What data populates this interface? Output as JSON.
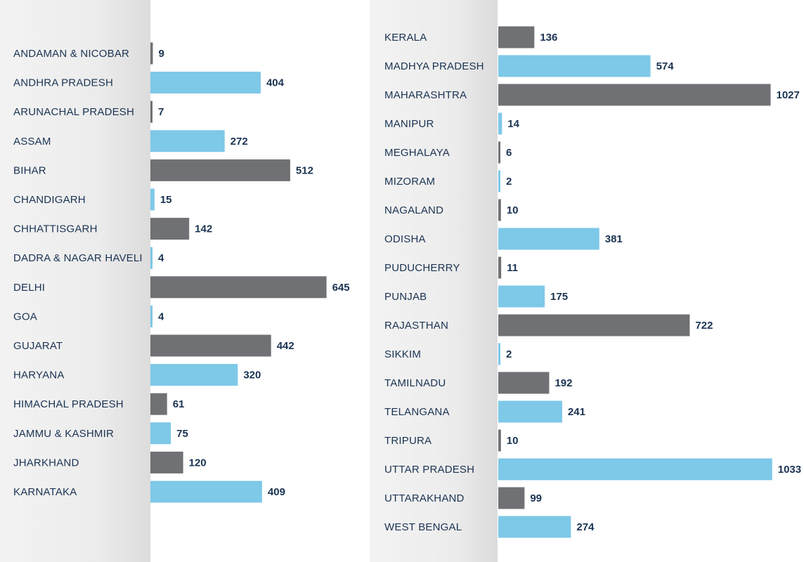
{
  "chart_data": [
    {
      "type": "bar",
      "orientation": "horizontal",
      "colors": [
        "#707175",
        "#7ec8e8"
      ],
      "color_pattern": "alternating",
      "categories": [
        "ANDAMAN & NICOBAR",
        "ANDHRA PRADESH",
        "ARUNACHAL PRADESH",
        "ASSAM",
        "BIHAR",
        "CHANDIGARH",
        "CHHATTISGARH",
        "DADRA & NAGAR HAVELI",
        "DELHI",
        "GOA",
        "GUJARAT",
        "HARYANA",
        "HIMACHAL PRADESH",
        "JAMMU & KASHMIR",
        "JHARKHAND",
        "KARNATAKA"
      ],
      "values": [
        9,
        404,
        7,
        272,
        512,
        15,
        142,
        4,
        645,
        4,
        442,
        320,
        61,
        75,
        120,
        409
      ]
    },
    {
      "type": "bar",
      "orientation": "horizontal",
      "colors": [
        "#707175",
        "#7ec8e8"
      ],
      "color_pattern": "alternating",
      "categories": [
        "KERALA",
        "MADHYA PRADESH",
        "MAHARASHTRA",
        "MANIPUR",
        "MEGHALAYA",
        "MIZORAM",
        "NAGALAND",
        "ODISHA",
        "PUDUCHERRY",
        "PUNJAB",
        "RAJASTHAN",
        "SIKKIM",
        "TAMILNADU",
        "TELANGANA",
        "TRIPURA",
        "UTTAR   PRADESH",
        "UTTARAKHAND",
        "WEST BENGAL"
      ],
      "values": [
        136,
        574,
        1027,
        14,
        6,
        2,
        10,
        381,
        11,
        175,
        722,
        2,
        192,
        241,
        10,
        1033,
        99,
        274
      ]
    }
  ]
}
